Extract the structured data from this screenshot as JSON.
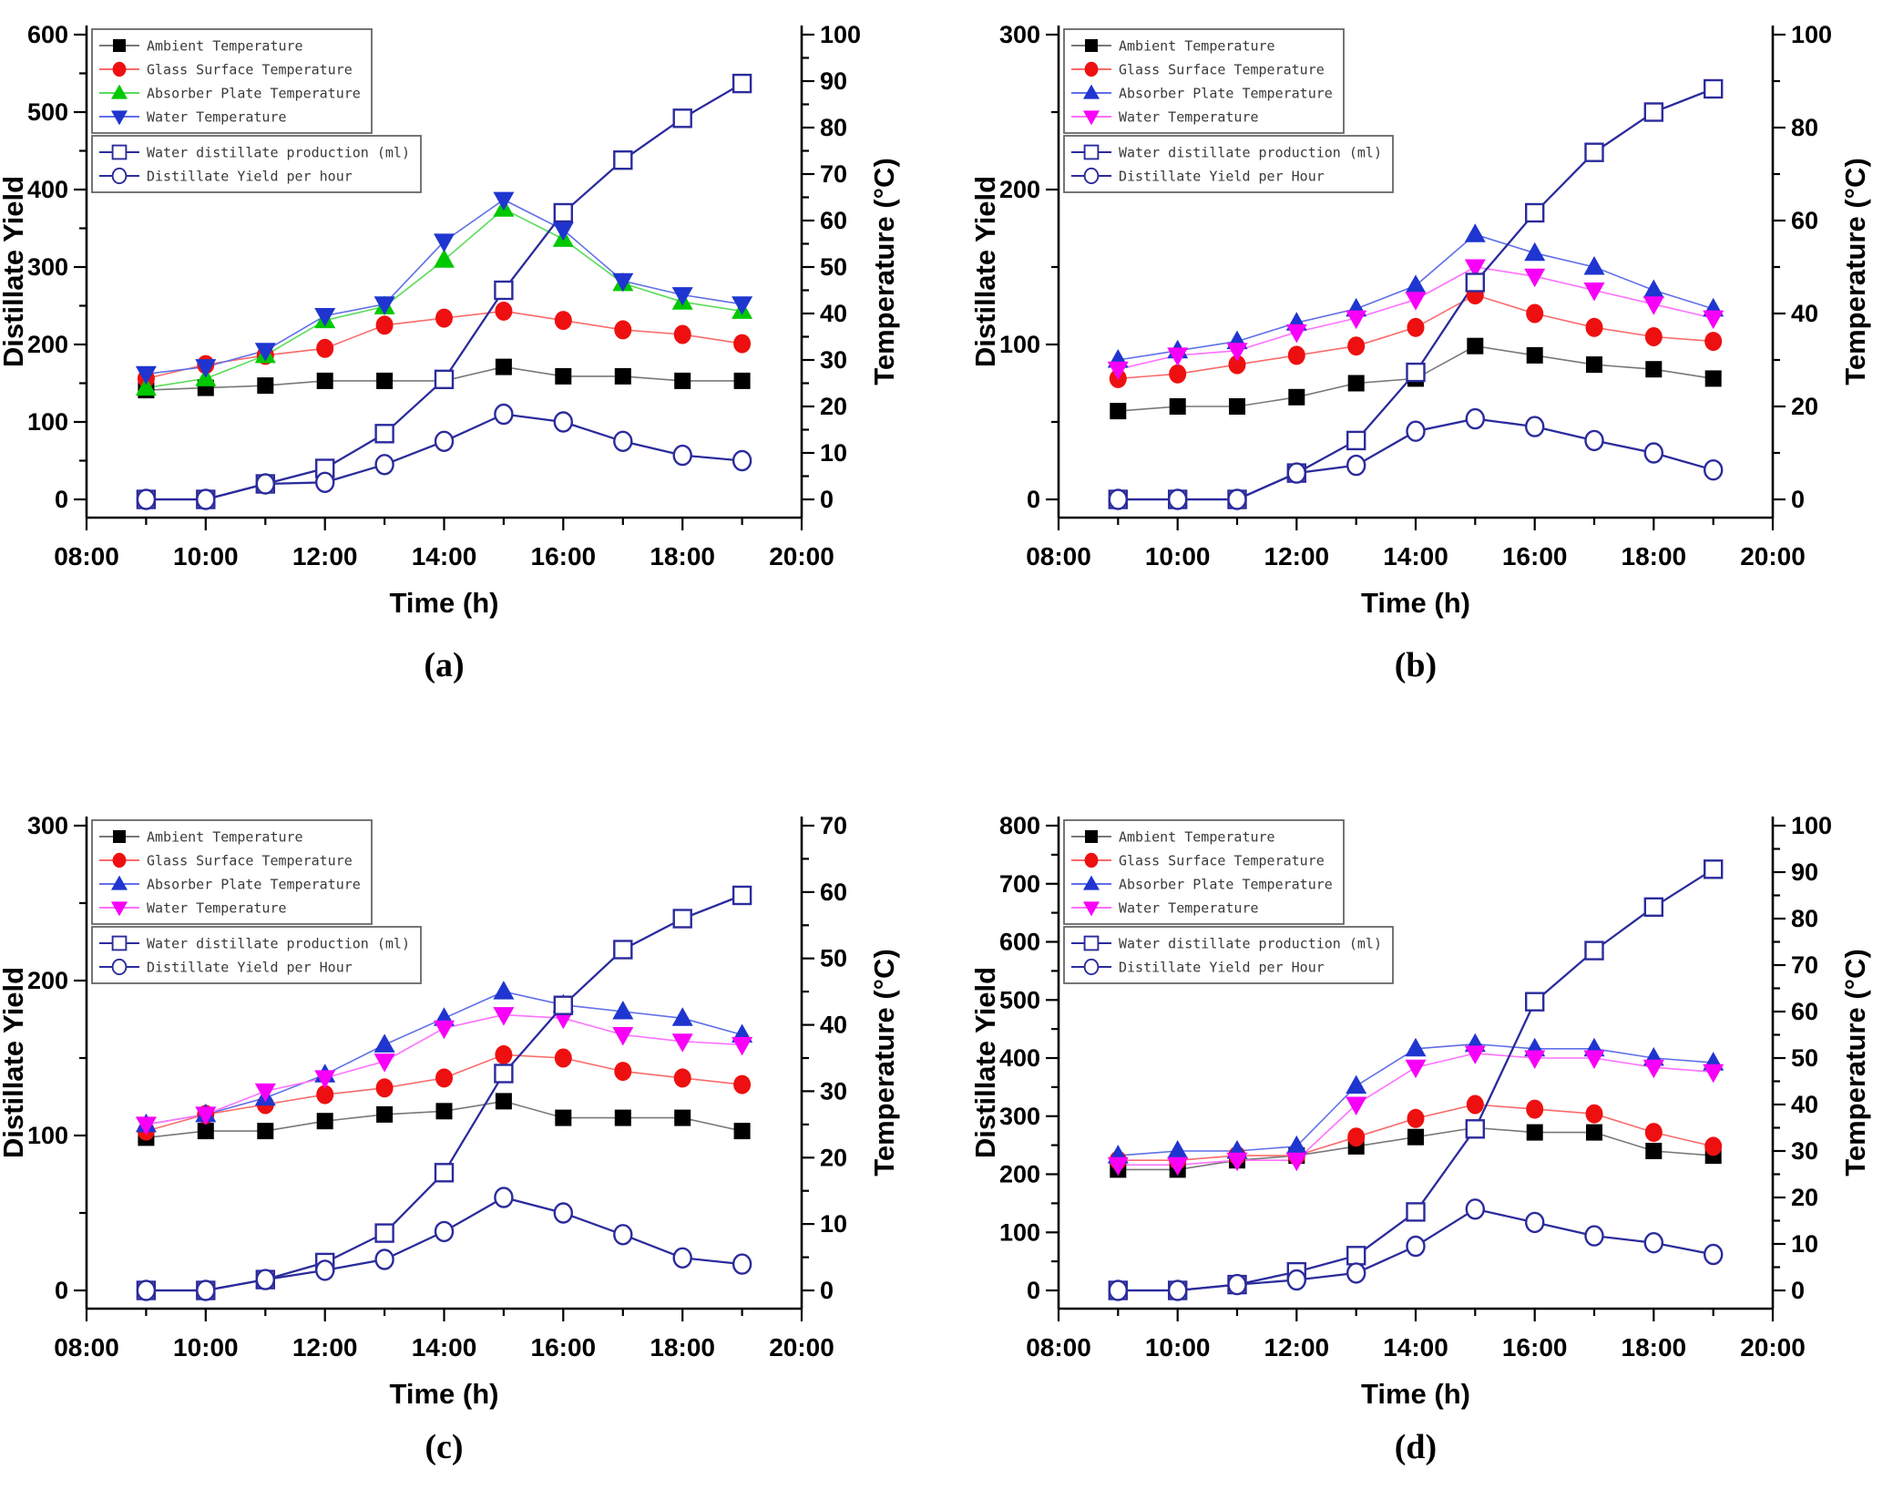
{
  "figure": {
    "background": "#ffffff",
    "panel_labels": [
      "(a)",
      "(b)",
      "(c)",
      "(d)"
    ]
  },
  "colors": {
    "axis": "#000000",
    "ambient_marker": "#000000",
    "ambient_line": "#787878",
    "glass_marker": "#ee1010",
    "glass_line": "#fb6a6a",
    "green_marker": "#00c800",
    "green_line": "#58dc58",
    "blue_marker": "#1f35cf",
    "blue_line": "#5f6fe8",
    "magenta_marker": "#f800f8",
    "magenta_line": "#ff70ff",
    "navy": "#2b2b9c",
    "legend_border": "#666666",
    "legend_text": "#3a3a3a"
  },
  "chart_data": [
    {
      "panel_label": "(a)",
      "type": "line",
      "hours": [
        9,
        10,
        11,
        12,
        13,
        14,
        15,
        16,
        17,
        18,
        19
      ],
      "x_axis": {
        "title": "Time (h)",
        "min": 8,
        "max": 20,
        "major_hours": [
          8,
          10,
          12,
          14,
          16,
          18,
          20
        ],
        "tick_labels": [
          "08:00",
          "10:00",
          "12:00",
          "14:00",
          "16:00",
          "18:00",
          "20:00"
        ],
        "minor_hours": [
          9,
          11,
          13,
          15,
          17,
          19
        ]
      },
      "left_axis": {
        "title": "Distillate Yield",
        "min": 0,
        "max": 600,
        "major_step": 100,
        "minor_step": 50
      },
      "right_axis": {
        "title": "Temperature (°C)",
        "min": 0,
        "max": 100,
        "major_step": 10,
        "minor_step": 5
      },
      "legend_groups": [
        4,
        2
      ],
      "series": [
        {
          "name": "Ambient Temperature",
          "axis": "right",
          "marker": "square",
          "marker_color": "#000000",
          "line_color": "#787878",
          "values": [
            23.5,
            24,
            24.5,
            25.5,
            25.5,
            25.5,
            28.5,
            26.5,
            26.5,
            25.5,
            25.5
          ]
        },
        {
          "name": "Glass Surface Temperature",
          "axis": "right",
          "marker": "circle",
          "marker_color": "#ee1010",
          "line_color": "#fb6a6a",
          "values": [
            26,
            29,
            31,
            32.5,
            37.5,
            39,
            40.5,
            38.5,
            36.5,
            35.5,
            33.5
          ]
        },
        {
          "name": "Absorber Plate Temperature",
          "axis": "right",
          "marker": "triangle-up",
          "marker_color": "#00c800",
          "line_color": "#58dc58",
          "values": [
            24,
            26,
            31,
            38.5,
            41.5,
            51.5,
            62.5,
            56,
            46.5,
            42.5,
            40.5
          ]
        },
        {
          "name": "Water Temperature",
          "axis": "right",
          "marker": "triangle-down",
          "marker_color": "#1f35cf",
          "line_color": "#5f6fe8",
          "values": [
            27,
            28.5,
            32,
            39.5,
            42,
            55.5,
            64.5,
            58,
            47,
            44,
            42
          ]
        },
        {
          "name": "Water distillate production (ml)",
          "axis": "left",
          "marker": "open-square",
          "marker_color": "#2b2b9c",
          "line_color": "#2b2b9c",
          "values": [
            0,
            0,
            20,
            40,
            85,
            155,
            270,
            370,
            438,
            492,
            537
          ]
        },
        {
          "name": "Distillate Yield per hour",
          "axis": "left",
          "marker": "open-circle",
          "marker_color": "#2b2b9c",
          "line_color": "#2b2b9c",
          "values": [
            0,
            0,
            20,
            22,
            45,
            75,
            110,
            100,
            75,
            57,
            50
          ]
        }
      ]
    },
    {
      "panel_label": "(b)",
      "type": "line",
      "hours": [
        9,
        10,
        11,
        12,
        13,
        14,
        15,
        16,
        17,
        18,
        19
      ],
      "x_axis": {
        "title": "Time (h)",
        "min": 8,
        "max": 20,
        "major_hours": [
          8,
          10,
          12,
          14,
          16,
          18,
          20
        ],
        "tick_labels": [
          "08:00",
          "10:00",
          "12:00",
          "14:00",
          "16:00",
          "18:00",
          "20:00"
        ],
        "minor_hours": [
          9,
          11,
          13,
          15,
          17,
          19
        ]
      },
      "left_axis": {
        "title": "Distillate Yield",
        "min": 0,
        "max": 300,
        "major_step": 100,
        "minor_step": 50
      },
      "right_axis": {
        "title": "Temperature (°C)",
        "min": 0,
        "max": 100,
        "major_step": 20,
        "minor_step": 10
      },
      "legend_groups": [
        4,
        2
      ],
      "series": [
        {
          "name": "Ambient Temperature",
          "axis": "right",
          "marker": "square",
          "marker_color": "#000000",
          "line_color": "#787878",
          "values": [
            19,
            20,
            20,
            22,
            25,
            26,
            33,
            31,
            29,
            28,
            26
          ]
        },
        {
          "name": "Glass Surface Temperature",
          "axis": "right",
          "marker": "circle",
          "marker_color": "#ee1010",
          "line_color": "#fb6a6a",
          "values": [
            26,
            27,
            29,
            31,
            33,
            37,
            44,
            40,
            37,
            35,
            34
          ]
        },
        {
          "name": "Absorber Plate Temperature",
          "axis": "right",
          "marker": "triangle-up",
          "marker_color": "#1f35cf",
          "line_color": "#5f6fe8",
          "values": [
            30,
            32,
            34,
            38,
            41,
            46,
            57,
            53,
            50,
            45,
            41
          ]
        },
        {
          "name": "Water Temperature",
          "axis": "right",
          "marker": "triangle-down",
          "marker_color": "#f800f8",
          "line_color": "#ff70ff",
          "values": [
            28,
            31,
            32,
            36,
            39,
            43,
            50,
            48,
            45,
            42,
            39
          ]
        },
        {
          "name": "Water distillate production (ml)",
          "axis": "left",
          "marker": "open-square",
          "marker_color": "#2b2b9c",
          "line_color": "#2b2b9c",
          "values": [
            0,
            0,
            0,
            17,
            38,
            82,
            140,
            185,
            224,
            250,
            265
          ]
        },
        {
          "name": "Distillate Yield per Hour",
          "axis": "left",
          "marker": "open-circle",
          "marker_color": "#2b2b9c",
          "line_color": "#2b2b9c",
          "values": [
            0,
            0,
            0,
            17,
            22,
            44,
            52,
            47,
            38,
            30,
            19
          ]
        }
      ]
    },
    {
      "panel_label": "(c)",
      "type": "line",
      "hours": [
        9,
        10,
        11,
        12,
        13,
        14,
        15,
        16,
        17,
        18,
        19
      ],
      "x_axis": {
        "title": "Time (h)",
        "min": 8,
        "max": 20,
        "major_hours": [
          8,
          10,
          12,
          14,
          16,
          18,
          20
        ],
        "tick_labels": [
          "08:00",
          "10:00",
          "12:00",
          "14:00",
          "16:00",
          "18:00",
          "20:00"
        ],
        "minor_hours": [
          9,
          11,
          13,
          15,
          17,
          19
        ]
      },
      "left_axis": {
        "title": "Distillate Yield",
        "min": 0,
        "max": 300,
        "major_step": 100,
        "minor_step": 50
      },
      "right_axis": {
        "title": "Temperature (°C)",
        "min": 0,
        "max": 70,
        "major_step": 10,
        "minor_step": 5
      },
      "legend_groups": [
        4,
        2
      ],
      "series": [
        {
          "name": "Ambient Temperature",
          "axis": "right",
          "marker": "square",
          "marker_color": "#000000",
          "line_color": "#787878",
          "values": [
            23,
            24,
            24,
            25.5,
            26.5,
            27,
            28.5,
            26,
            26,
            26,
            24
          ]
        },
        {
          "name": "Glass Surface Temperature",
          "axis": "right",
          "marker": "circle",
          "marker_color": "#ee1010",
          "line_color": "#fb6a6a",
          "values": [
            24,
            26.5,
            28,
            29.5,
            30.5,
            32,
            35.5,
            35,
            33,
            32,
            31
          ]
        },
        {
          "name": "Absorber Plate Temperature",
          "axis": "right",
          "marker": "triangle-up",
          "marker_color": "#1f35cf",
          "line_color": "#5f6fe8",
          "values": [
            25,
            26.5,
            29,
            32.5,
            37,
            41,
            45,
            43,
            42,
            41,
            38.5
          ]
        },
        {
          "name": "Water Temperature",
          "axis": "right",
          "marker": "triangle-down",
          "marker_color": "#f800f8",
          "line_color": "#ff70ff",
          "values": [
            25,
            26.5,
            30,
            32,
            34.5,
            39.5,
            41.5,
            41,
            38.5,
            37.5,
            37
          ]
        },
        {
          "name": "Water distillate production (ml)",
          "axis": "left",
          "marker": "open-square",
          "marker_color": "#2b2b9c",
          "line_color": "#2b2b9c",
          "values": [
            0,
            0,
            7,
            18,
            37,
            76,
            140,
            184,
            220,
            240,
            255
          ]
        },
        {
          "name": "Distillate Yield per Hour",
          "axis": "left",
          "marker": "open-circle",
          "marker_color": "#2b2b9c",
          "line_color": "#2b2b9c",
          "values": [
            0,
            0,
            7,
            13,
            20,
            38,
            60,
            50,
            36,
            21,
            17
          ]
        }
      ]
    },
    {
      "panel_label": "(d)",
      "type": "line",
      "hours": [
        9,
        10,
        11,
        12,
        13,
        14,
        15,
        16,
        17,
        18,
        19
      ],
      "x_axis": {
        "title": "Time (h)",
        "min": 8,
        "max": 20,
        "major_hours": [
          8,
          10,
          12,
          14,
          16,
          18,
          20
        ],
        "tick_labels": [
          "08:00",
          "10:00",
          "12:00",
          "14:00",
          "16:00",
          "18:00",
          "20:00"
        ],
        "minor_hours": [
          9,
          11,
          13,
          15,
          17,
          19
        ]
      },
      "left_axis": {
        "title": "Distillate Yield",
        "min": 0,
        "max": 800,
        "major_step": 100,
        "minor_step": 50
      },
      "right_axis": {
        "title": "Temperature (°C)",
        "min": 0,
        "max": 100,
        "major_step": 10,
        "minor_step": 5
      },
      "legend_groups": [
        4,
        2
      ],
      "series": [
        {
          "name": "Ambient Temperature",
          "axis": "right",
          "marker": "square",
          "marker_color": "#000000",
          "line_color": "#787878",
          "values": [
            26,
            26,
            28,
            29,
            31,
            33,
            35,
            34,
            34,
            30,
            29
          ]
        },
        {
          "name": "Glass Surface Temperature",
          "axis": "right",
          "marker": "circle",
          "marker_color": "#ee1010",
          "line_color": "#fb6a6a",
          "values": [
            28,
            28,
            29,
            29,
            33,
            37,
            40,
            39,
            38,
            34,
            31
          ]
        },
        {
          "name": "Absorber Plate Temperature",
          "axis": "right",
          "marker": "triangle-up",
          "marker_color": "#1f35cf",
          "line_color": "#5f6fe8",
          "values": [
            29,
            30,
            30,
            31,
            44,
            52,
            53,
            52,
            52,
            50,
            49
          ]
        },
        {
          "name": "Water Temperature",
          "axis": "right",
          "marker": "triangle-down",
          "marker_color": "#f800f8",
          "line_color": "#ff70ff",
          "values": [
            27,
            27,
            28,
            28,
            40,
            48,
            51,
            50,
            50,
            48,
            47
          ]
        },
        {
          "name": "Water distillate production (ml)",
          "axis": "left",
          "marker": "open-square",
          "marker_color": "#2b2b9c",
          "line_color": "#2b2b9c",
          "values": [
            0,
            0,
            10,
            32,
            60,
            135,
            278,
            497,
            585,
            660,
            725
          ]
        },
        {
          "name": "Distillate Yield per Hour",
          "axis": "left",
          "marker": "open-circle",
          "marker_color": "#2b2b9c",
          "line_color": "#2b2b9c",
          "values": [
            0,
            0,
            10,
            18,
            30,
            76,
            140,
            117,
            94,
            82,
            62
          ]
        }
      ]
    }
  ]
}
